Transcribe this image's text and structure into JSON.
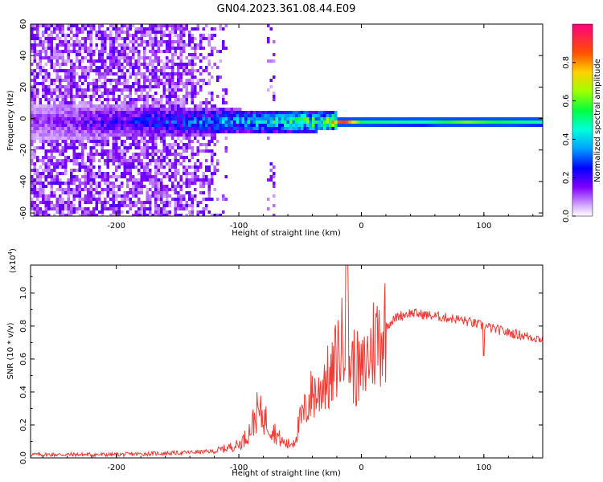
{
  "title": "GN04.2023.361.08.44.E09",
  "chart_data": [
    {
      "type": "heatmap",
      "xlabel": "Height of straight line (km)",
      "ylabel": "Frequency (Hz)",
      "xlim": [
        -270,
        148
      ],
      "ylim": [
        -62,
        60
      ],
      "xticks": [
        -200,
        -100,
        0,
        100
      ],
      "yticks": [
        -60,
        -40,
        -20,
        0,
        20,
        40,
        60
      ],
      "colorbar": {
        "label": "Normalized spectral amplitude",
        "range": [
          0,
          1
        ],
        "ticks": [
          "0.0",
          "0.2",
          "0.4",
          "0.6",
          "0.8"
        ]
      },
      "ridge": [
        {
          "x": -260,
          "amp": 0.15
        },
        {
          "x": -200,
          "amp": 0.25
        },
        {
          "x": -150,
          "amp": 0.35
        },
        {
          "x": -100,
          "amp": 0.45
        },
        {
          "x": -60,
          "amp": 0.6
        },
        {
          "x": -30,
          "amp": 0.75
        },
        {
          "x": -15,
          "amp": 0.95
        },
        {
          "x": 0,
          "amp": 0.55
        },
        {
          "x": 50,
          "amp": 0.5
        },
        {
          "x": 85,
          "amp": 0.65
        },
        {
          "x": 100,
          "amp": 0.6
        },
        {
          "x": 148,
          "amp": 0.5
        }
      ]
    },
    {
      "type": "line",
      "xlabel": "Height of straight line (km)",
      "ylabel": "SNR (10 * v/v)",
      "scale_note": "(x10",
      "scale_exp": "4",
      "scale_close": ")",
      "xlim": [
        -270,
        148
      ],
      "ylim": [
        0,
        1.17
      ],
      "xticks": [
        -200,
        -100,
        0,
        100
      ],
      "yticks": [
        "0.0",
        "0.2",
        "0.4",
        "0.6",
        "0.8",
        "1.0"
      ],
      "series": [
        {
          "color": "#f03a32",
          "x": [
            -270,
            -230,
            -200,
            -150,
            -120,
            -110,
            -100,
            -95,
            -90,
            -85,
            -80,
            -75,
            -70,
            -65,
            -60,
            -55,
            -50,
            -45,
            -40,
            -35,
            -30,
            -25,
            -20,
            -15,
            -12,
            -10,
            -5,
            0,
            10,
            20,
            30,
            40,
            50,
            60,
            80,
            100,
            120,
            148
          ],
          "y": [
            0.02,
            0.02,
            0.02,
            0.03,
            0.04,
            0.06,
            0.08,
            0.12,
            0.18,
            0.28,
            0.25,
            0.2,
            0.15,
            0.1,
            0.08,
            0.1,
            0.22,
            0.3,
            0.4,
            0.38,
            0.5,
            0.45,
            0.62,
            0.7,
            1.15,
            0.6,
            0.55,
            0.5,
            0.7,
            0.8,
            0.86,
            0.88,
            0.87,
            0.86,
            0.84,
            0.8,
            0.76,
            0.72
          ]
        }
      ]
    }
  ]
}
